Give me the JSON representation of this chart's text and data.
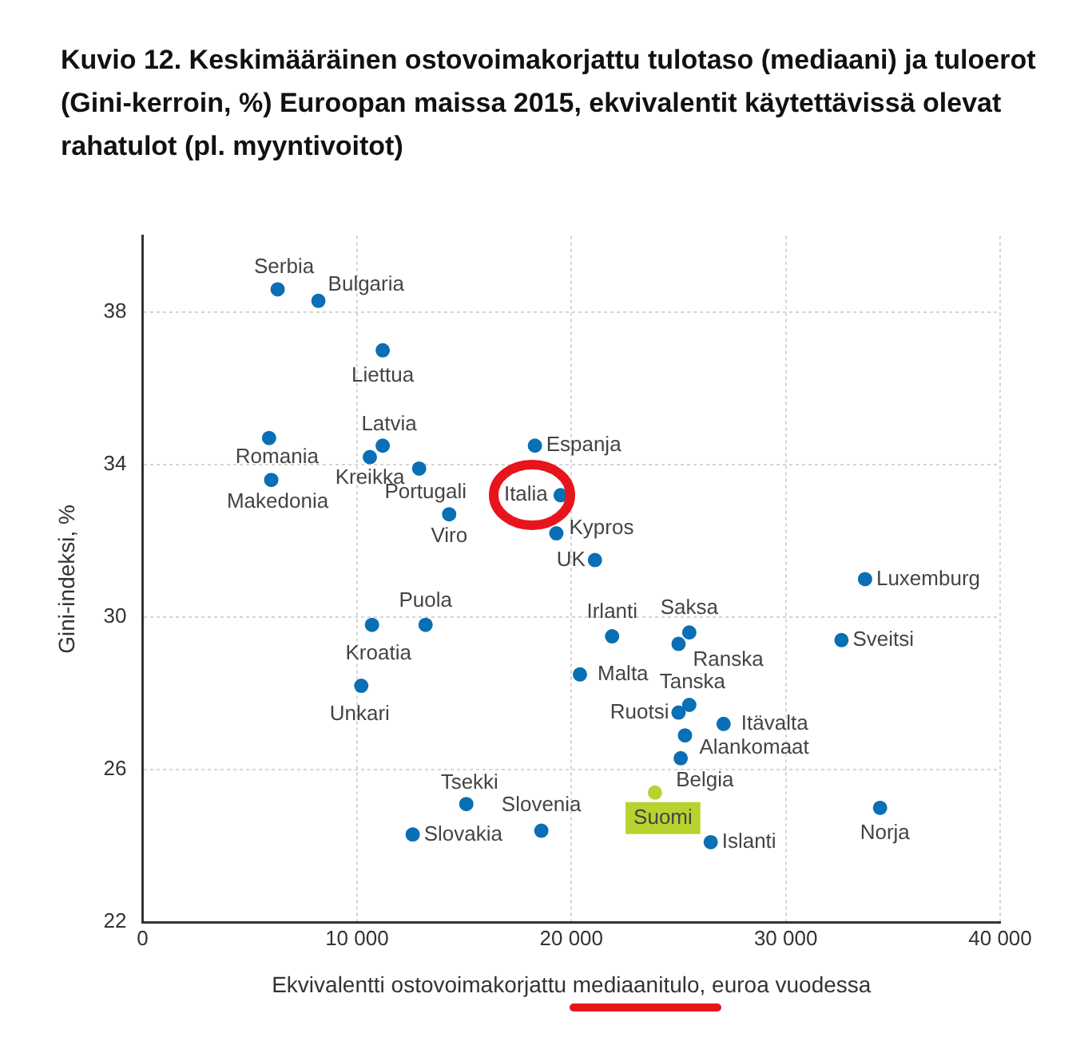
{
  "chart_data": {
    "type": "scatter",
    "title": "Kuvio 12. Keskimääräinen ostovoimakorjattu tulotaso (mediaani) ja tuloerot (Gini-kerroin, %) Euroopan maissa 2015, ekvivalentit käytettävissä olevat rahatulot (pl. myyntivoitot)",
    "xlabel": "Ekvivalentti ostovoimakorjattu mediaanitulo, euroa vuodessa",
    "ylabel": "Gini-indeksi, %",
    "xlim": [
      0,
      40000
    ],
    "ylim": [
      22,
      40
    ],
    "xticks": [
      {
        "value": 0,
        "label": "0"
      },
      {
        "value": 10000,
        "label": "10 000"
      },
      {
        "value": 20000,
        "label": "20 000"
      },
      {
        "value": 30000,
        "label": "30 000"
      },
      {
        "value": 40000,
        "label": "40 000"
      }
    ],
    "yticks": [
      22,
      26,
      30,
      34,
      38
    ],
    "grid": true,
    "legend": false,
    "marker": "circle",
    "series": [
      {
        "color": "#0a6fb5",
        "x": [
          6300,
          8200,
          11200,
          5900,
          6000,
          11200,
          10600,
          12900,
          14300,
          18300,
          19500,
          19300,
          21100,
          33700,
          32600,
          21900,
          25500,
          25000,
          20400,
          25500,
          25000,
          27100,
          25300,
          25100,
          13200,
          10700,
          10200,
          15100,
          18600,
          12600,
          26500,
          34400
        ],
        "values": [
          38.6,
          38.3,
          37.0,
          34.7,
          33.6,
          34.5,
          34.2,
          33.9,
          32.7,
          34.5,
          33.2,
          32.2,
          31.5,
          31.0,
          29.4,
          29.5,
          29.6,
          29.3,
          28.5,
          27.7,
          27.5,
          27.2,
          26.9,
          26.3,
          29.8,
          29.8,
          28.2,
          25.1,
          24.4,
          24.3,
          24.1,
          25.0
        ]
      },
      {
        "color": "#b9d22f",
        "x": [
          23900
        ],
        "values": [
          25.4
        ]
      }
    ],
    "annotations": [
      {
        "text": "Serbia",
        "x": 6300,
        "y": 38.6
      },
      {
        "text": "Bulgaria",
        "x": 8200,
        "y": 38.3
      },
      {
        "text": "Liettua",
        "x": 11200,
        "y": 37.0
      },
      {
        "text": "Romania",
        "x": 5900,
        "y": 34.7
      },
      {
        "text": "Makedonia",
        "x": 6000,
        "y": 33.6
      },
      {
        "text": "Latvia",
        "x": 11200,
        "y": 34.5
      },
      {
        "text": "Kreikka",
        "x": 10600,
        "y": 34.2
      },
      {
        "text": "Portugali",
        "x": 12900,
        "y": 33.9
      },
      {
        "text": "Viro",
        "x": 14300,
        "y": 32.7
      },
      {
        "text": "Espanja",
        "x": 18300,
        "y": 34.5
      },
      {
        "text": "Italia",
        "x": 19500,
        "y": 33.2
      },
      {
        "text": "Kypros",
        "x": 19300,
        "y": 32.2
      },
      {
        "text": "UK",
        "x": 21100,
        "y": 31.5
      },
      {
        "text": "Luxemburg",
        "x": 33700,
        "y": 31.0
      },
      {
        "text": "Sveitsi",
        "x": 32600,
        "y": 29.4
      },
      {
        "text": "Irlanti",
        "x": 21900,
        "y": 29.5
      },
      {
        "text": "Saksa",
        "x": 25500,
        "y": 29.6
      },
      {
        "text": "Ranska",
        "x": 25000,
        "y": 29.3
      },
      {
        "text": "Malta",
        "x": 20400,
        "y": 28.5
      },
      {
        "text": "Tanska",
        "x": 25500,
        "y": 27.7
      },
      {
        "text": "Ruotsi",
        "x": 25000,
        "y": 27.5
      },
      {
        "text": "Itävalta",
        "x": 27100,
        "y": 27.2
      },
      {
        "text": "Alankomaat",
        "x": 25300,
        "y": 26.9
      },
      {
        "text": "Belgia",
        "x": 25100,
        "y": 26.3
      },
      {
        "text": "Suomi",
        "x": 23900,
        "y": 25.4
      },
      {
        "text": "Puola",
        "x": 13200,
        "y": 29.8
      },
      {
        "text": "Kroatia",
        "x": 10700,
        "y": 29.8
      },
      {
        "text": "Unkari",
        "x": 10200,
        "y": 28.2
      },
      {
        "text": "Tsekki",
        "x": 15100,
        "y": 25.1
      },
      {
        "text": "Slovenia",
        "x": 18600,
        "y": 24.4
      },
      {
        "text": "Slovakia",
        "x": 12600,
        "y": 24.3
      },
      {
        "text": "Islanti",
        "x": 26500,
        "y": 24.1
      },
      {
        "text": "Norja",
        "x": 34400,
        "y": 25.0
      }
    ]
  }
}
